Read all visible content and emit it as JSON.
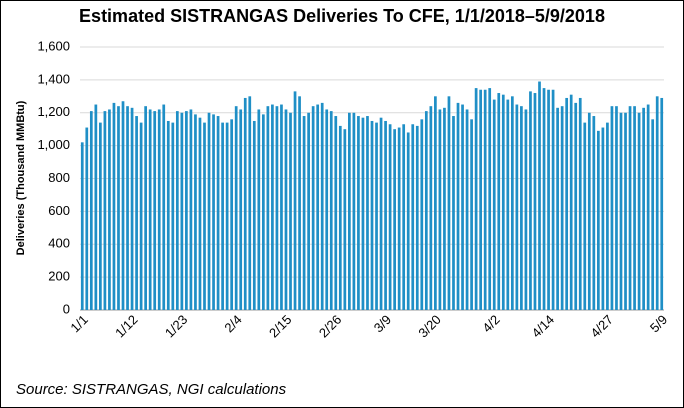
{
  "chart_data": {
    "type": "bar",
    "title": "Estimated SISTRANGAS Deliveries To CFE, 1/1/2018–5/9/2018",
    "y_label": "Deliveries (Thousand MMBtu)",
    "source": "Source: SISTRANGAS, NGI calculations",
    "color": "#1f8fc6",
    "grid": true,
    "ylim": [
      0,
      1600
    ],
    "yticks": [
      0,
      200,
      400,
      600,
      800,
      {
        "value": 1000,
        "label": "1,000"
      },
      {
        "value": 1200,
        "label": "1,200"
      },
      {
        "value": 1400,
        "label": "1,400"
      },
      {
        "value": 1600,
        "label": "1,600"
      }
    ],
    "categories": [
      "1/1",
      null,
      null,
      null,
      null,
      null,
      null,
      null,
      null,
      null,
      null,
      "1/12",
      null,
      null,
      null,
      null,
      null,
      null,
      null,
      null,
      null,
      null,
      "1/23",
      null,
      null,
      null,
      null,
      null,
      null,
      null,
      null,
      null,
      null,
      null,
      "2/4",
      null,
      null,
      null,
      null,
      null,
      null,
      null,
      null,
      null,
      null,
      "2/15",
      null,
      null,
      null,
      null,
      null,
      null,
      null,
      null,
      null,
      null,
      "2/26",
      null,
      null,
      null,
      null,
      null,
      null,
      null,
      null,
      null,
      null,
      "3/9",
      null,
      null,
      null,
      null,
      null,
      null,
      null,
      null,
      null,
      null,
      "3/20",
      null,
      null,
      null,
      null,
      null,
      null,
      null,
      null,
      null,
      null,
      null,
      null,
      "4/2",
      null,
      null,
      null,
      null,
      null,
      null,
      null,
      null,
      null,
      null,
      null,
      "4/14",
      null,
      null,
      null,
      null,
      null,
      null,
      null,
      null,
      null,
      null,
      null,
      null,
      "4/27",
      null,
      null,
      null,
      null,
      null,
      null,
      null,
      null,
      null,
      null,
      null,
      "5/9"
    ],
    "values": [
      1020,
      1110,
      1210,
      1250,
      1140,
      1210,
      1220,
      1260,
      1240,
      1270,
      1240,
      1230,
      1180,
      1140,
      1240,
      1220,
      1210,
      1220,
      1250,
      1150,
      1140,
      1210,
      1200,
      1210,
      1220,
      1190,
      1170,
      1140,
      1200,
      1190,
      1180,
      1140,
      1140,
      1160,
      1240,
      1220,
      1290,
      1300,
      1150,
      1220,
      1190,
      1240,
      1250,
      1240,
      1250,
      1220,
      1200,
      1330,
      1300,
      1180,
      1200,
      1240,
      1250,
      1260,
      1220,
      1210,
      1180,
      1120,
      1100,
      1200,
      1200,
      1180,
      1170,
      1180,
      1150,
      1140,
      1170,
      1150,
      1130,
      1100,
      1110,
      1130,
      1080,
      1130,
      1120,
      1160,
      1210,
      1240,
      1300,
      1220,
      1230,
      1300,
      1180,
      1260,
      1250,
      1220,
      1160,
      1350,
      1340,
      1340,
      1350,
      1280,
      1320,
      1310,
      1280,
      1300,
      1250,
      1240,
      1220,
      1330,
      1320,
      1390,
      1350,
      1340,
      1340,
      1230,
      1240,
      1290,
      1310,
      1260,
      1290,
      1140,
      1200,
      1180,
      1090,
      1110,
      1140,
      1240,
      1240,
      1200,
      1200,
      1240,
      1240,
      1200,
      1230,
      1250,
      1160,
      1300,
      1290
    ]
  }
}
